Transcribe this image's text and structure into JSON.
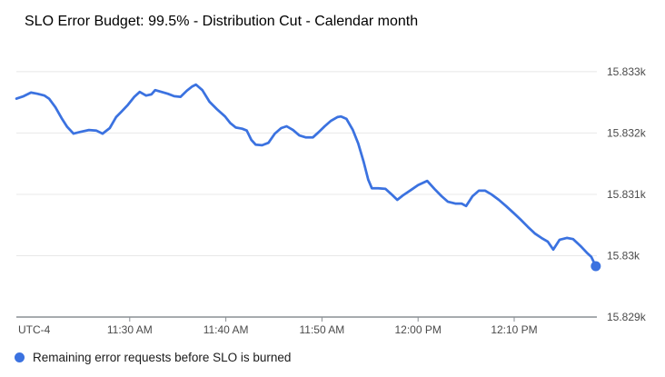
{
  "header": {
    "title": "SLO Error Budget: 99.5% - Distribution Cut - Calendar month"
  },
  "legend": {
    "label": "Remaining error requests before SLO is burned"
  },
  "colors": {
    "series_blue": "#3b72e0",
    "gridline": "#e8e8e8",
    "axis_line": "#8a8f94",
    "tick_text": "#4a4a4a",
    "title_text": "#000000"
  },
  "chart_data": {
    "type": "line",
    "title": "SLO Error Budget: 99.5% - Distribution Cut - Calendar month",
    "xlabel": "",
    "ylabel": "",
    "timezone_label": "UTC-4",
    "grid": true,
    "legend_position": "bottom",
    "x_unit": "minutes relative to 11:30 AM",
    "xlim": [
      -11.8,
      48.6
    ],
    "ylim": [
      15829,
      15833.28
    ],
    "x_ticks": [
      {
        "t": 0,
        "label": "11:30 AM"
      },
      {
        "t": 10,
        "label": "11:40 AM"
      },
      {
        "t": 20,
        "label": "11:50 AM"
      },
      {
        "t": 30,
        "label": "12:00 PM"
      },
      {
        "t": 40,
        "label": "12:10 PM"
      }
    ],
    "y_ticks": [
      {
        "v": 15833,
        "label": "15.833k"
      },
      {
        "v": 15832,
        "label": "15.832k"
      },
      {
        "v": 15831,
        "label": "15.831k"
      },
      {
        "v": 15830,
        "label": "15.83k"
      },
      {
        "v": 15829,
        "label": "15.829k"
      }
    ],
    "series": [
      {
        "name": "Remaining error requests before SLO is burned",
        "color": "#3b72e0",
        "end_marker": true,
        "points": [
          [
            -11.79,
            15832.56
          ],
          [
            -11.04,
            15832.6
          ],
          [
            -10.28,
            15832.66
          ],
          [
            -9.62,
            15832.64
          ],
          [
            -8.87,
            15832.61
          ],
          [
            -8.4,
            15832.56
          ],
          [
            -7.74,
            15832.42
          ],
          [
            -7.08,
            15832.24
          ],
          [
            -6.51,
            15832.1
          ],
          [
            -5.85,
            15831.99
          ],
          [
            -5.09,
            15832.02
          ],
          [
            -4.25,
            15832.05
          ],
          [
            -3.49,
            15832.04
          ],
          [
            -2.83,
            15831.99
          ],
          [
            -2.08,
            15832.08
          ],
          [
            -1.42,
            15832.26
          ],
          [
            -0.85,
            15832.35
          ],
          [
            -0.19,
            15832.46
          ],
          [
            0.47,
            15832.59
          ],
          [
            1.04,
            15832.67
          ],
          [
            1.7,
            15832.61
          ],
          [
            2.26,
            15832.63
          ],
          [
            2.64,
            15832.7
          ],
          [
            3.3,
            15832.67
          ],
          [
            3.96,
            15832.64
          ],
          [
            4.62,
            15832.6
          ],
          [
            5.28,
            15832.59
          ],
          [
            5.94,
            15832.69
          ],
          [
            6.51,
            15832.76
          ],
          [
            6.89,
            15832.79
          ],
          [
            7.55,
            15832.7
          ],
          [
            8.3,
            15832.51
          ],
          [
            9.06,
            15832.39
          ],
          [
            9.91,
            15832.27
          ],
          [
            10.47,
            15832.16
          ],
          [
            11.04,
            15832.09
          ],
          [
            11.7,
            15832.07
          ],
          [
            12.17,
            15832.04
          ],
          [
            12.64,
            15831.89
          ],
          [
            13.11,
            15831.81
          ],
          [
            13.77,
            15831.8
          ],
          [
            14.43,
            15831.84
          ],
          [
            15.09,
            15831.99
          ],
          [
            15.75,
            15832.08
          ],
          [
            16.32,
            15832.11
          ],
          [
            16.98,
            15832.05
          ],
          [
            17.64,
            15831.96
          ],
          [
            18.3,
            15831.93
          ],
          [
            19.06,
            15831.93
          ],
          [
            19.62,
            15832.01
          ],
          [
            20.28,
            15832.11
          ],
          [
            20.94,
            15832.2
          ],
          [
            21.6,
            15832.26
          ],
          [
            21.98,
            15832.27
          ],
          [
            22.55,
            15832.23
          ],
          [
            23.21,
            15832.05
          ],
          [
            23.77,
            15831.83
          ],
          [
            24.34,
            15831.53
          ],
          [
            24.81,
            15831.24
          ],
          [
            25.19,
            15831.1
          ],
          [
            25.85,
            15831.1
          ],
          [
            26.6,
            15831.09
          ],
          [
            27.17,
            15831.01
          ],
          [
            27.83,
            15830.91
          ],
          [
            28.49,
            15830.99
          ],
          [
            29.25,
            15831.07
          ],
          [
            30.0,
            15831.15
          ],
          [
            30.94,
            15831.22
          ],
          [
            31.7,
            15831.09
          ],
          [
            32.45,
            15830.97
          ],
          [
            33.11,
            15830.88
          ],
          [
            33.87,
            15830.85
          ],
          [
            34.53,
            15830.85
          ],
          [
            35.0,
            15830.81
          ],
          [
            35.66,
            15830.97
          ],
          [
            36.32,
            15831.06
          ],
          [
            36.98,
            15831.06
          ],
          [
            37.64,
            15831.0
          ],
          [
            38.4,
            15830.91
          ],
          [
            39.15,
            15830.81
          ],
          [
            39.91,
            15830.7
          ],
          [
            40.66,
            15830.59
          ],
          [
            41.42,
            15830.47
          ],
          [
            42.17,
            15830.36
          ],
          [
            42.83,
            15830.29
          ],
          [
            43.49,
            15830.23
          ],
          [
            44.06,
            15830.1
          ],
          [
            44.72,
            15830.26
          ],
          [
            45.47,
            15830.29
          ],
          [
            46.13,
            15830.27
          ],
          [
            46.89,
            15830.16
          ],
          [
            47.55,
            15830.05
          ],
          [
            48.02,
            15829.98
          ],
          [
            48.49,
            15829.83
          ]
        ]
      }
    ]
  }
}
